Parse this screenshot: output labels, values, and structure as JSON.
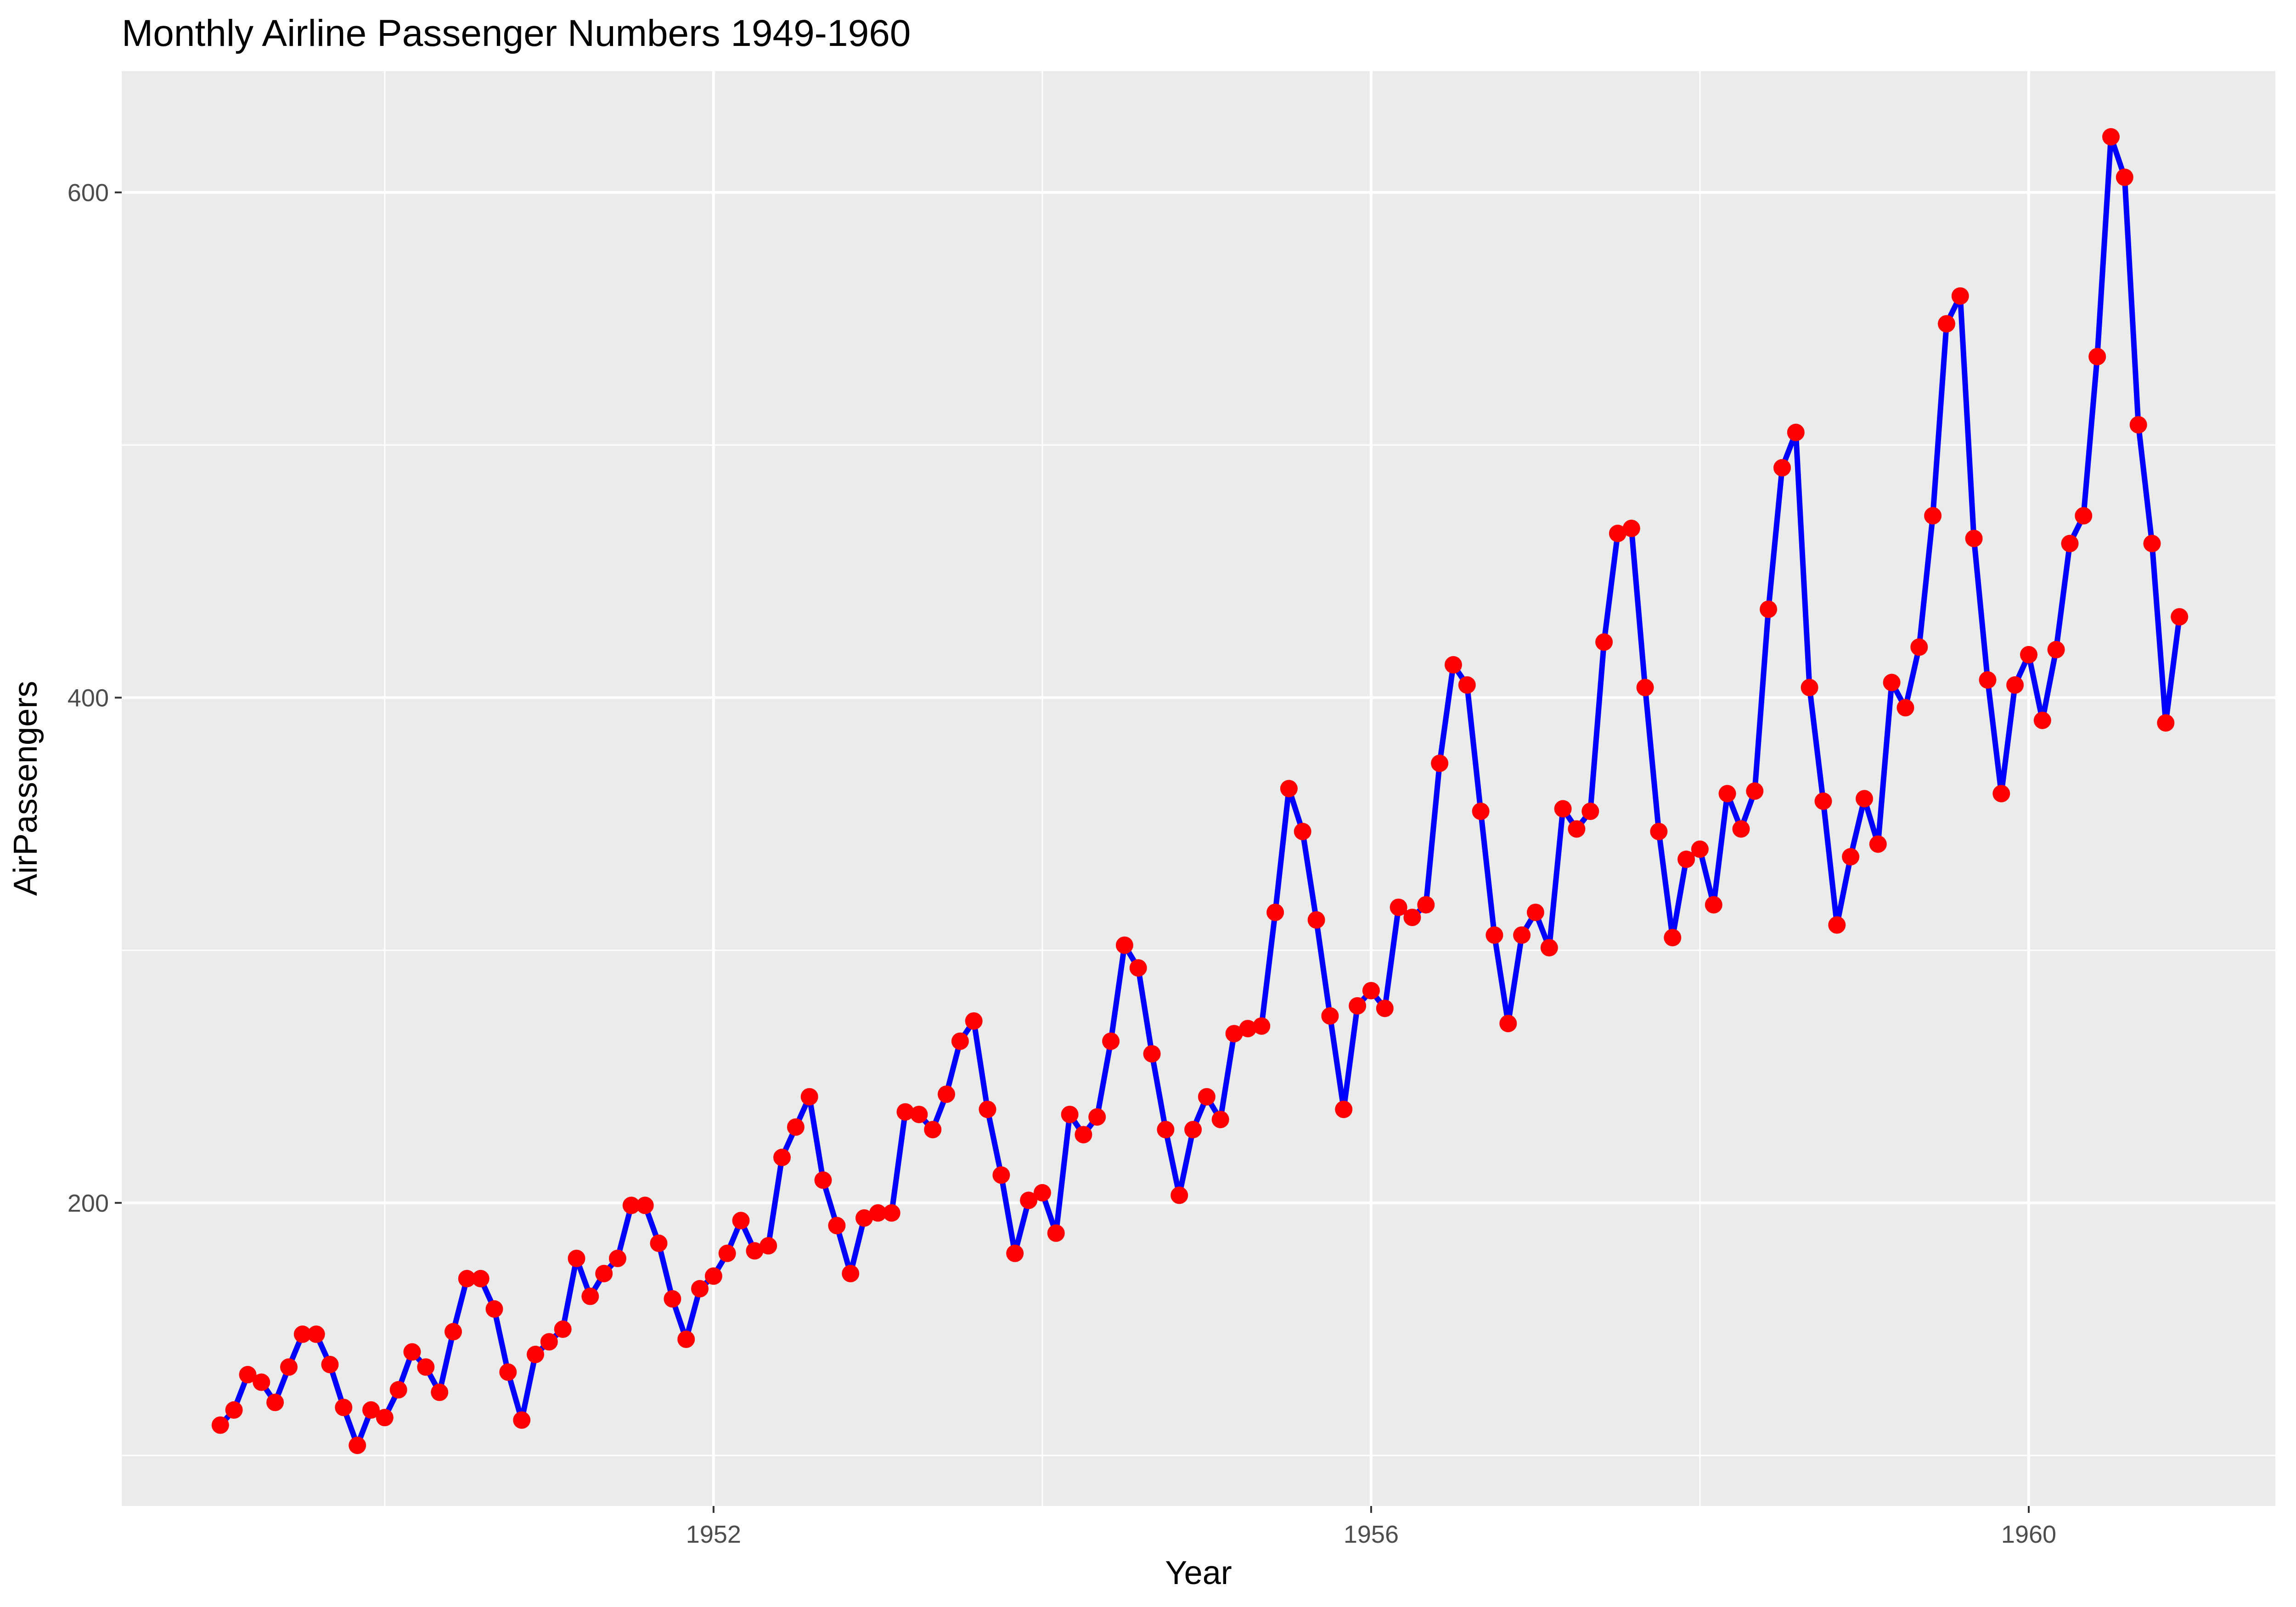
{
  "chart_data": {
    "type": "line",
    "title": "Monthly Airline Passenger Numbers 1949-1960",
    "xlabel": "Year",
    "ylabel": "AirPassengers",
    "x_ticks": [
      "1952",
      "1956",
      "1960"
    ],
    "y_ticks": [
      "200",
      "400",
      "600"
    ],
    "xlim": [
      1948.4,
      1961.5
    ],
    "ylim": [
      80,
      648
    ],
    "grid": true,
    "legend": "none",
    "colors": {
      "panel": "#ebebeb",
      "grid": "#ffffff",
      "line": "#0000ff",
      "points": "#ff0000"
    },
    "series": [
      {
        "x_start": 1949,
        "x_step": 0.0833333333,
        "values": [
          112,
          118,
          132,
          129,
          121,
          135,
          148,
          148,
          136,
          119,
          104,
          118,
          115,
          126,
          141,
          135,
          125,
          149,
          170,
          170,
          158,
          133,
          114,
          140,
          145,
          150,
          178,
          163,
          172,
          178,
          199,
          199,
          184,
          162,
          146,
          166,
          171,
          180,
          193,
          181,
          183,
          218,
          230,
          242,
          209,
          191,
          172,
          194,
          196,
          196,
          236,
          235,
          229,
          243,
          264,
          272,
          237,
          211,
          180,
          201,
          204,
          188,
          235,
          227,
          234,
          264,
          302,
          293,
          259,
          229,
          203,
          229,
          242,
          233,
          267,
          269,
          270,
          315,
          364,
          347,
          312,
          274,
          237,
          278,
          284,
          277,
          317,
          313,
          318,
          374,
          413,
          405,
          355,
          306,
          271,
          306,
          315,
          301,
          356,
          348,
          355,
          422,
          465,
          467,
          404,
          347,
          305,
          336,
          340,
          318,
          362,
          348,
          363,
          435,
          491,
          505,
          404,
          359,
          310,
          337,
          360,
          342,
          406,
          396,
          420,
          472,
          548,
          559,
          463,
          407,
          362,
          405,
          417,
          391,
          419,
          461,
          472,
          535,
          622,
          606,
          508,
          461,
          390,
          432
        ]
      }
    ]
  }
}
